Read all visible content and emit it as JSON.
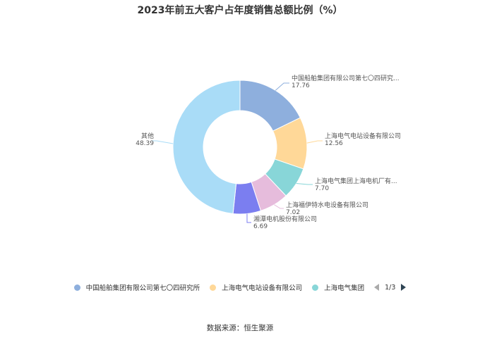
{
  "chart_data": {
    "type": "pie",
    "title": "2023年前五大客户占年度销售总额比例（%）",
    "slices": [
      {
        "label": "中国船舶集团有限公司第七〇四研究...",
        "value": 17.76,
        "color": "#8eafdd"
      },
      {
        "label": "上海电气电站设备有限公司",
        "value": 12.56,
        "color": "#ffd898"
      },
      {
        "label": "上海电气集团上海电机厂有...",
        "value": 7.7,
        "color": "#88d6d8"
      },
      {
        "label": "上海福伊特水电设备有限公司",
        "value": 7.02,
        "color": "#e6bcdc"
      },
      {
        "label": "湘潭电机股份有限公司",
        "value": 6.69,
        "color": "#7b7ef0"
      },
      {
        "label": "其他",
        "value": 48.39,
        "color": "#a9dcf7"
      }
    ],
    "legend": {
      "placement": "bottom",
      "items": [
        {
          "label": "中国船舶集团有限公司第七〇四研究所",
          "color": "#8eafdd"
        },
        {
          "label": "上海电气电站设备有限公司",
          "color": "#ffd898"
        },
        {
          "label": "上海电气集团",
          "color": "#88d6d8"
        }
      ],
      "page": "1/3"
    }
  },
  "source": "数据来源：恒生聚源"
}
